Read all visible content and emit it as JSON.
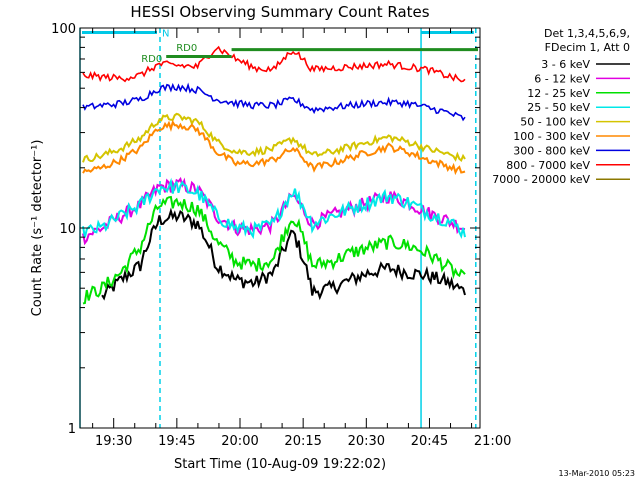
{
  "chart_data": {
    "type": "line",
    "title": "HESSI Observing Summary Count Rates",
    "xlabel": "Start Time (10-Aug-09 19:22:02)",
    "ylabel": "Count Rate (s⁻¹ detector⁻¹)",
    "yscale": "log",
    "ylim": [
      1,
      100
    ],
    "xlim": [
      "19:22",
      "20:57"
    ],
    "x_ticks": [
      "19:30",
      "19:45",
      "20:00",
      "20:15",
      "20:30",
      "20:45",
      "21:00"
    ],
    "y_ticks": [
      "1",
      "10",
      "100"
    ],
    "grid": false,
    "legend_position": "right",
    "legend_header": [
      "Det 1,3,4,5,6,9,",
      "FDecim 1, Att 0"
    ],
    "footer_date": "13-Mar-2010 05:23",
    "attenuator_flags": [
      {
        "label": "N",
        "color": "#00c8e6",
        "y": 95
      },
      {
        "label": "RD0",
        "color": "#1f8c1f",
        "y": 78
      },
      {
        "label": "RD0",
        "color": "#1f8c1f",
        "y": 72
      }
    ],
    "event_lines": [
      {
        "time": "19:22",
        "style": "solid"
      },
      {
        "time": "19:41",
        "style": "dashed"
      },
      {
        "time": "20:43",
        "style": "solid"
      },
      {
        "time": "20:56",
        "style": "dashed"
      }
    ],
    "series": [
      {
        "name": "3 - 6 keV",
        "color": "#000000",
        "values": [
          null,
          4.5,
          5.5,
          6.5,
          11,
          11.5,
          10.5,
          6.5,
          5.5,
          5.3,
          6.0,
          9.5,
          4.8,
          5.0,
          5.5,
          6.0,
          6.3,
          6.0,
          5.8,
          5.4,
          4.8
        ]
      },
      {
        "name": "6 - 12 keV",
        "color": "#e100e1",
        "values": [
          9.0,
          10.0,
          11.5,
          13.0,
          16,
          16.5,
          15.5,
          11.5,
          10.0,
          9.8,
          10.5,
          14.5,
          10.5,
          11.5,
          12.5,
          13.5,
          14.5,
          13.5,
          12.0,
          11.0,
          10.0
        ]
      },
      {
        "name": "12 - 25 keV",
        "color": "#00e000",
        "values": [
          4.5,
          5.0,
          6.0,
          8.0,
          13,
          13.5,
          12.5,
          8.5,
          6.8,
          6.5,
          7.0,
          11.5,
          6.5,
          6.8,
          7.5,
          8.0,
          8.5,
          8.2,
          7.5,
          6.5,
          5.5
        ]
      },
      {
        "name": "25 - 50 keV",
        "color": "#00e8e8",
        "values": [
          9.5,
          10.0,
          11.5,
          13.0,
          16,
          16.0,
          15.0,
          11.5,
          10.0,
          9.8,
          10.5,
          15.5,
          10.5,
          11.5,
          12.5,
          13.5,
          14.5,
          13.5,
          12.0,
          11.0,
          9.5
        ]
      },
      {
        "name": "50 - 100 keV",
        "color": "#d4c400",
        "values": [
          22,
          23,
          25,
          28,
          35,
          36,
          34,
          27,
          24,
          24,
          25,
          28,
          23,
          24,
          25.5,
          27,
          28.5,
          27,
          25,
          23.5,
          22
        ]
      },
      {
        "name": "100 - 300 keV",
        "color": "#ff8800",
        "values": [
          19,
          20,
          22,
          25,
          32,
          33,
          31,
          24,
          21,
          21,
          22,
          25,
          20,
          21,
          22.5,
          24,
          25.5,
          24,
          22,
          20.5,
          19
        ]
      },
      {
        "name": "300 - 800 keV",
        "color": "#0000e0",
        "values": [
          40,
          41,
          42,
          44,
          50,
          51,
          49,
          44,
          42,
          41,
          41,
          44,
          39,
          40,
          41,
          42,
          42.5,
          42,
          40,
          38,
          35
        ]
      },
      {
        "name": "800 - 7000 keV",
        "color": "#ff0000",
        "values": [
          58,
          57,
          56,
          58,
          66,
          65,
          64,
          80,
          70,
          63,
          62,
          78,
          62,
          63,
          64,
          65,
          66,
          64,
          62,
          58,
          54
        ]
      },
      {
        "name": "7000 - 20000 keV",
        "color": "#8c7800",
        "values": []
      }
    ]
  }
}
